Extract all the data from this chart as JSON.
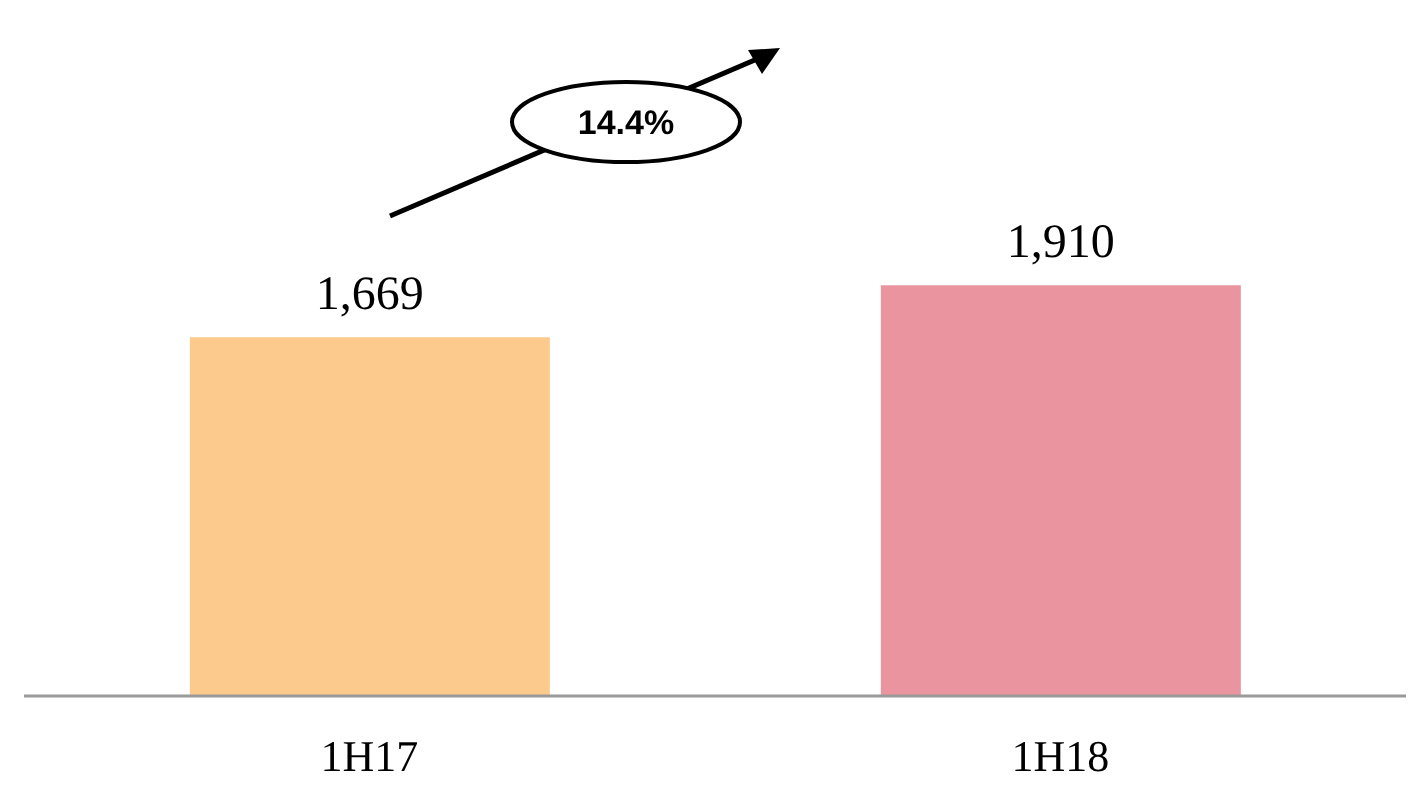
{
  "chart_data": {
    "type": "bar",
    "categories": [
      "1H17",
      "1H18"
    ],
    "values": [
      1669,
      1910
    ],
    "colors": [
      "#fdca8e",
      "#e9949f"
    ],
    "value_labels": [
      "1,669",
      "1,910"
    ],
    "annotations": [
      "14.4%"
    ]
  }
}
